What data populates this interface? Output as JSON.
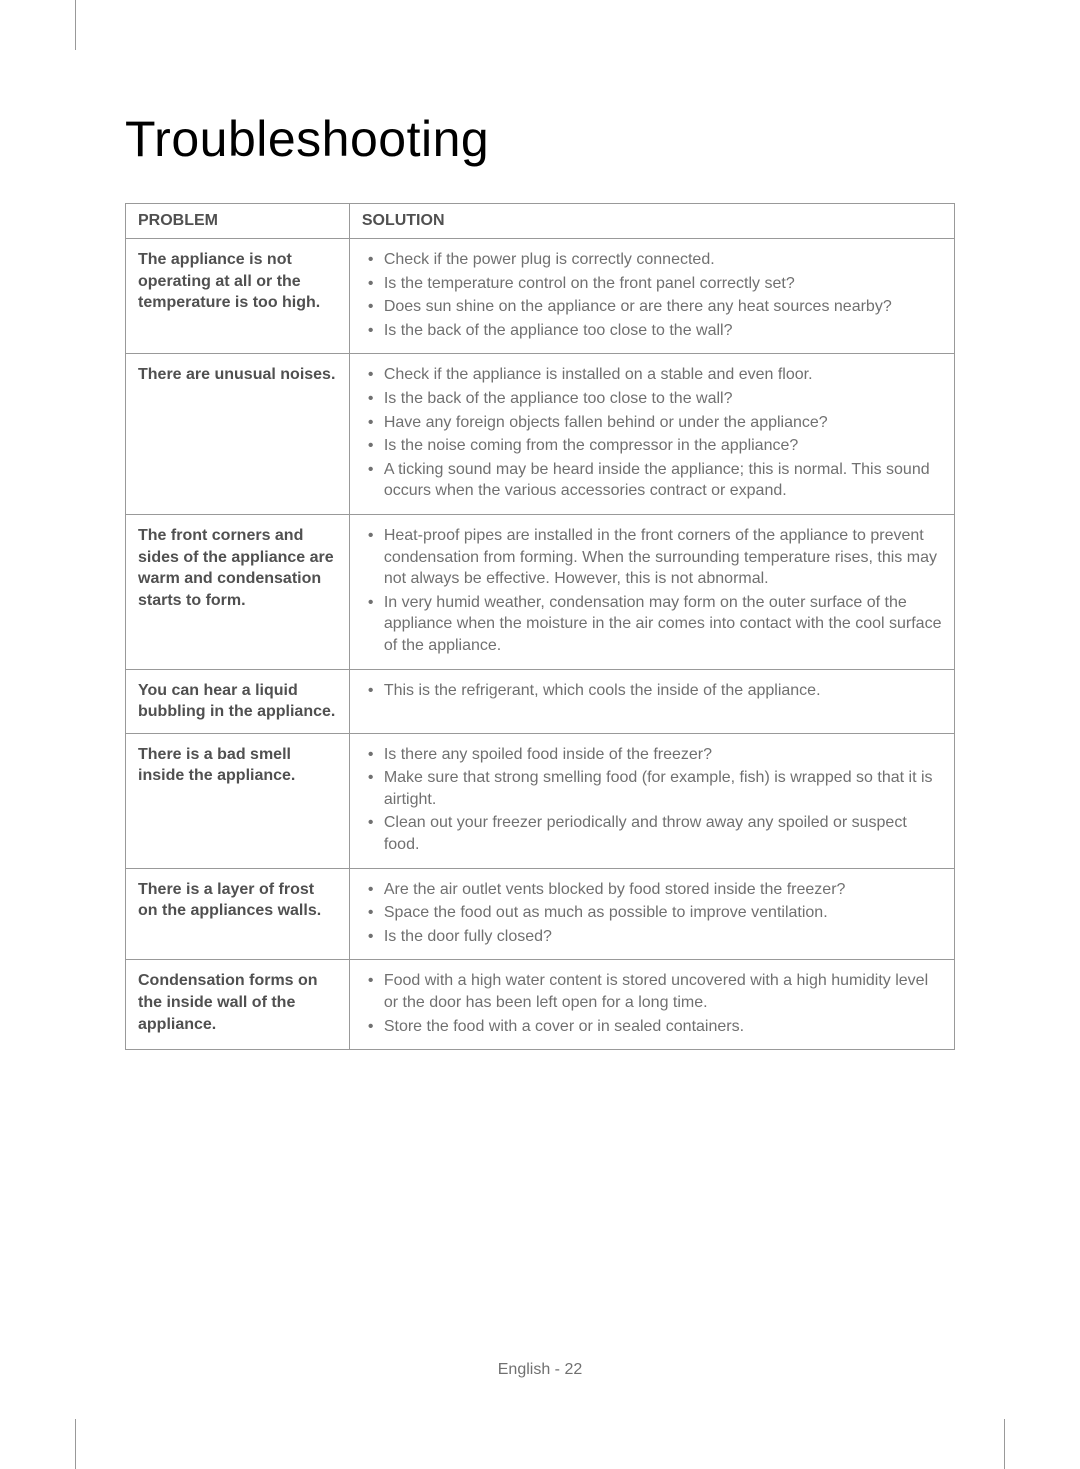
{
  "title": "Troubleshooting",
  "headers": {
    "problem": "PROBLEM",
    "solution": "SOLUTION"
  },
  "rows": [
    {
      "problem": "The appliance is not operating at all or the temperature is too high.",
      "solutions": [
        "Check if the power plug is correctly connected.",
        "Is the temperature control on the front panel correctly set?",
        "Does sun shine on the appliance or are there any heat sources nearby?",
        "Is the back of the appliance too close to the wall?"
      ]
    },
    {
      "problem": "There are unusual noises.",
      "solutions": [
        "Check if the appliance is installed on a stable and even floor.",
        "Is the back of the appliance too close to the wall?",
        "Have any foreign objects fallen behind or under the appliance?",
        "Is the noise coming from the compressor in the appliance?",
        "A ticking sound may be heard inside the appliance; this is normal. This sound occurs when the various accessories contract or expand."
      ]
    },
    {
      "problem": "The front corners and sides of the appliance are warm and condensation starts to form.",
      "solutions": [
        "Heat-proof pipes are installed in the front corners of the appliance to prevent condensation from forming. When the surrounding temperature rises, this may not always be effective. However, this is not abnormal.",
        "In very humid weather, condensation may form on the outer surface of the appliance when the moisture in the air comes into contact with the cool surface of the appliance."
      ]
    },
    {
      "problem": "You can hear a liquid bubbling in the appliance.",
      "solutions": [
        "This is the refrigerant, which cools the inside of the appliance."
      ]
    },
    {
      "problem": "There is a bad smell inside the appliance.",
      "solutions": [
        "Is there any spoiled food inside of the freezer?",
        "Make sure that strong smelling food (for example, fish) is wrapped so that it is airtight.",
        "Clean out your freezer periodically and throw away any spoiled or suspect food."
      ]
    },
    {
      "problem": "There is a layer of frost on the appliances walls.",
      "solutions": [
        "Are the air outlet vents blocked by food stored inside the freezer?",
        "Space the food out as much as possible to improve ventilation.",
        "Is the door fully closed?"
      ]
    },
    {
      "problem": "Condensation forms on the inside wall of the appliance.",
      "solutions": [
        "Food with a high water content is stored uncovered with a high humidity level or the door has been left open for a long time.",
        "Store the food with a cover or in sealed containers."
      ]
    }
  ],
  "footer": "English - 22"
}
